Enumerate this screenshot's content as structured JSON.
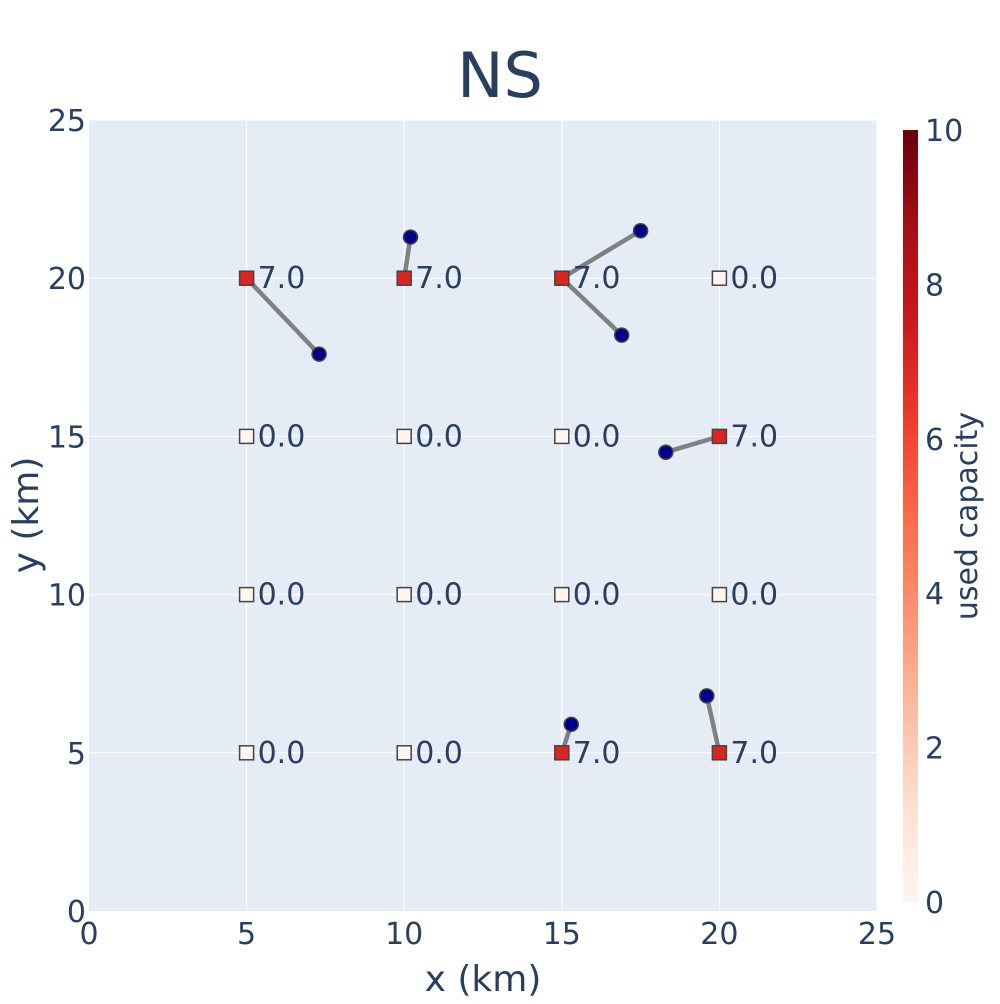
{
  "chart_data": {
    "type": "scatter",
    "title": "NS",
    "xlabel": "x (km)",
    "ylabel": "y (km)",
    "xlim": [
      0,
      25
    ],
    "ylim": [
      0,
      25
    ],
    "xticks": [
      0,
      5,
      10,
      15,
      20,
      25
    ],
    "yticks": [
      0,
      5,
      10,
      15,
      20,
      25
    ],
    "grid": true,
    "plot_background": "#e5ecf6",
    "facilities": {
      "marker": "square",
      "points": [
        {
          "x": 5,
          "y": 20,
          "capacity": 7.0,
          "label": "7.0"
        },
        {
          "x": 10,
          "y": 20,
          "capacity": 7.0,
          "label": "7.0"
        },
        {
          "x": 15,
          "y": 20,
          "capacity": 7.0,
          "label": "7.0"
        },
        {
          "x": 20,
          "y": 20,
          "capacity": 0.0,
          "label": "0.0"
        },
        {
          "x": 5,
          "y": 15,
          "capacity": 0.0,
          "label": "0.0"
        },
        {
          "x": 10,
          "y": 15,
          "capacity": 0.0,
          "label": "0.0"
        },
        {
          "x": 15,
          "y": 15,
          "capacity": 0.0,
          "label": "0.0"
        },
        {
          "x": 20,
          "y": 15,
          "capacity": 7.0,
          "label": "7.0"
        },
        {
          "x": 5,
          "y": 10,
          "capacity": 0.0,
          "label": "0.0"
        },
        {
          "x": 10,
          "y": 10,
          "capacity": 0.0,
          "label": "0.0"
        },
        {
          "x": 15,
          "y": 10,
          "capacity": 0.0,
          "label": "0.0"
        },
        {
          "x": 20,
          "y": 10,
          "capacity": 0.0,
          "label": "0.0"
        },
        {
          "x": 5,
          "y": 5,
          "capacity": 0.0,
          "label": "0.0"
        },
        {
          "x": 10,
          "y": 5,
          "capacity": 0.0,
          "label": "0.0"
        },
        {
          "x": 15,
          "y": 5,
          "capacity": 7.0,
          "label": "7.0"
        },
        {
          "x": 20,
          "y": 5,
          "capacity": 7.0,
          "label": "7.0"
        }
      ]
    },
    "customers": {
      "marker": "circle",
      "color": "#00008b",
      "points": [
        {
          "x": 7.3,
          "y": 17.6
        },
        {
          "x": 10.2,
          "y": 21.3
        },
        {
          "x": 17.5,
          "y": 21.5
        },
        {
          "x": 16.9,
          "y": 18.2
        },
        {
          "x": 18.3,
          "y": 14.5
        },
        {
          "x": 15.3,
          "y": 5.9
        },
        {
          "x": 19.6,
          "y": 6.8
        }
      ]
    },
    "assignments": {
      "color": "#808080",
      "links": [
        {
          "from": [
            5,
            20
          ],
          "to": [
            7.3,
            17.6
          ]
        },
        {
          "from": [
            10,
            20
          ],
          "to": [
            10.2,
            21.3
          ]
        },
        {
          "from": [
            15,
            20
          ],
          "to": [
            17.5,
            21.5
          ]
        },
        {
          "from": [
            15,
            20
          ],
          "to": [
            16.9,
            18.2
          ]
        },
        {
          "from": [
            20,
            15
          ],
          "to": [
            18.3,
            14.5
          ]
        },
        {
          "from": [
            15,
            5
          ],
          "to": [
            15.3,
            5.9
          ]
        },
        {
          "from": [
            20,
            5
          ],
          "to": [
            19.6,
            6.8
          ]
        }
      ]
    },
    "colorbar": {
      "title": "used capacity",
      "range": [
        0,
        10
      ],
      "ticks": [
        0,
        2,
        4,
        6,
        8,
        10
      ],
      "colorscale": "Reds",
      "stops": [
        "#fff5f0",
        "#fee0d2",
        "#fcbba1",
        "#fc9272",
        "#fb6a4a",
        "#ef3b2c",
        "#cb181d",
        "#a50f15",
        "#67000d"
      ]
    }
  }
}
